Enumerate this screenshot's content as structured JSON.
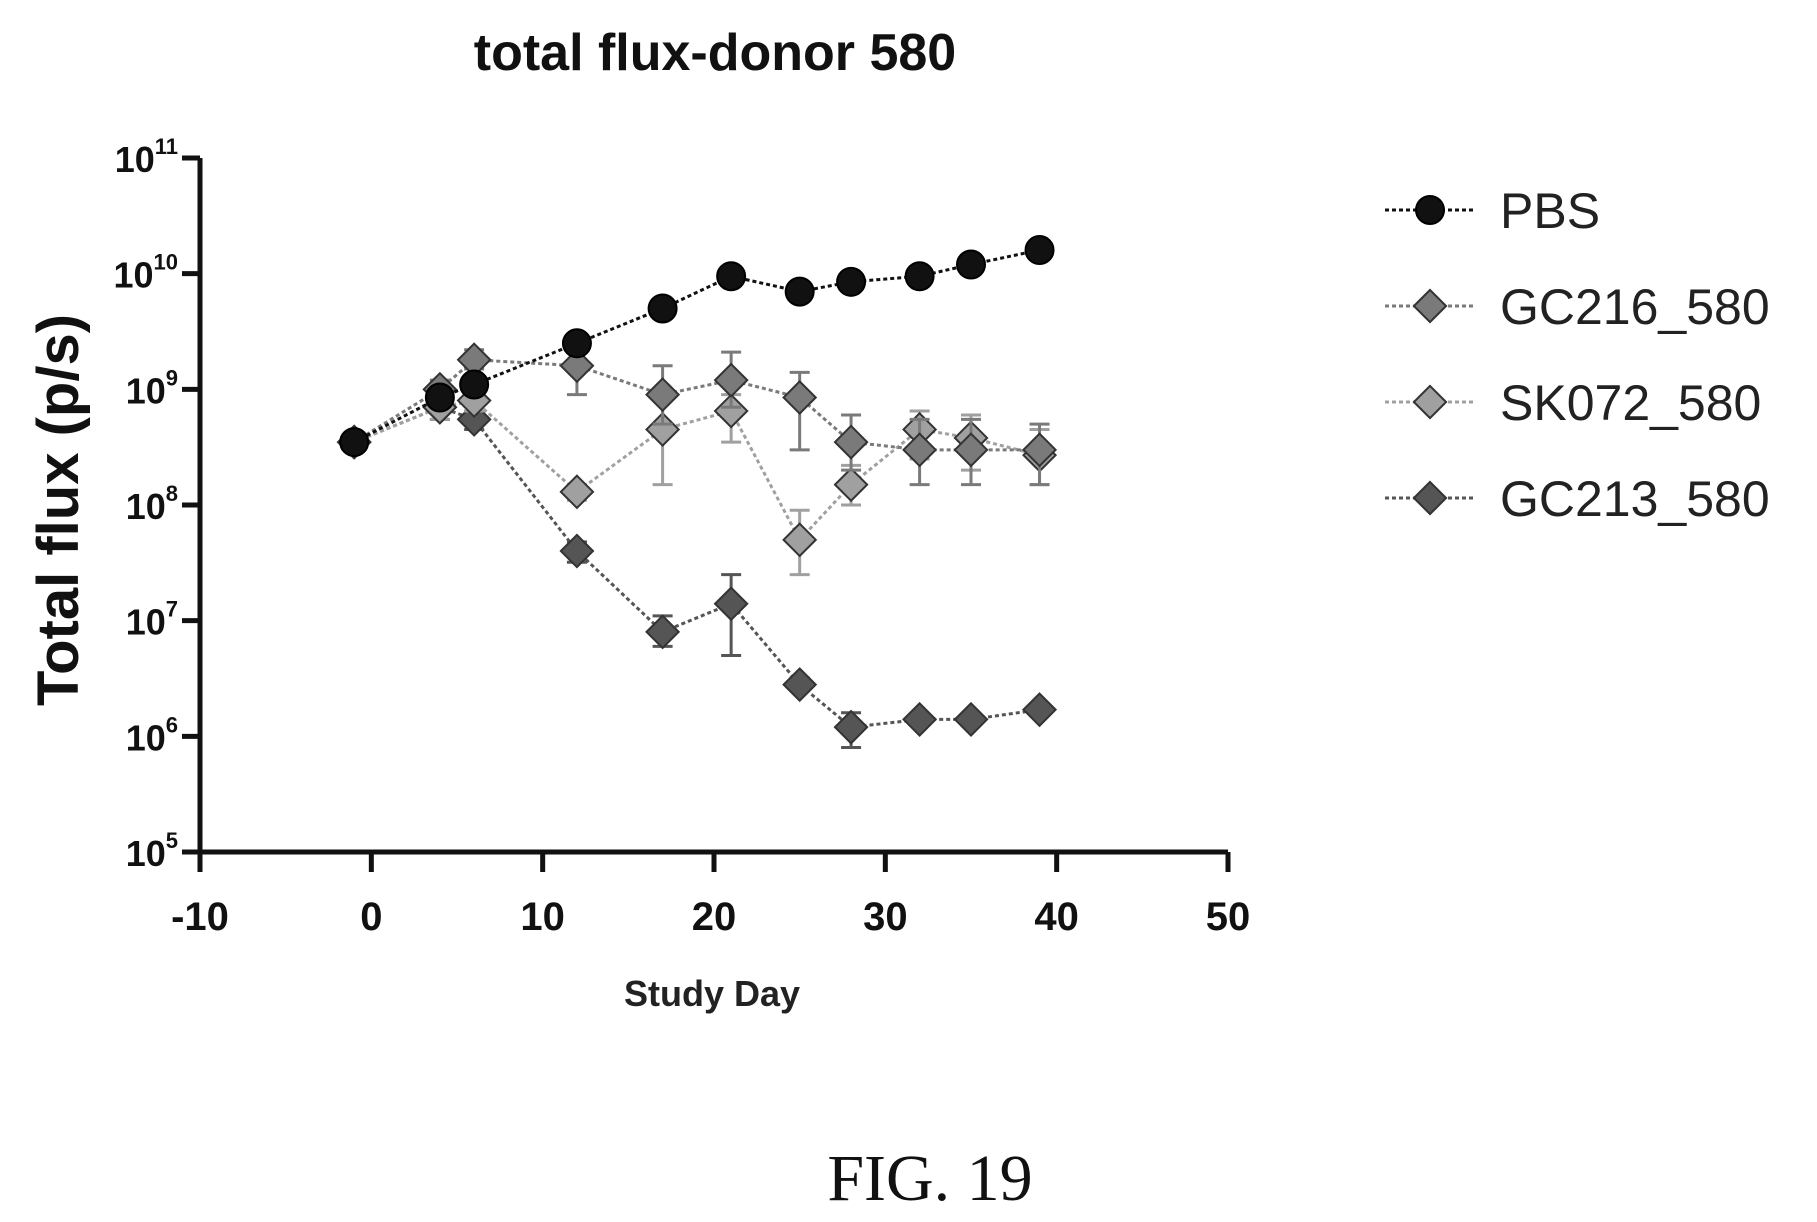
{
  "chart_data": {
    "type": "line",
    "title": "total flux-donor 580",
    "xlabel": "Study Day",
    "ylabel": "Total flux (p/s)",
    "xlim": [
      -10,
      50
    ],
    "xticks": [
      -10,
      0,
      10,
      20,
      30,
      40,
      50
    ],
    "xtick_labels": [
      "-10",
      "0",
      "10",
      "20",
      "30",
      "40",
      "50"
    ],
    "ylim": [
      100000,
      100000000000
    ],
    "yscale": "log",
    "yticks": [
      {
        "value": 100000,
        "base": "10",
        "exp": "5"
      },
      {
        "value": 1000000,
        "base": "10",
        "exp": "6"
      },
      {
        "value": 10000000,
        "base": "10",
        "exp": "7"
      },
      {
        "value": 100000000,
        "base": "10",
        "exp": "8"
      },
      {
        "value": 1000000000,
        "base": "10",
        "exp": "9"
      },
      {
        "value": 10000000000,
        "base": "10",
        "exp": "10"
      },
      {
        "value": 100000000000,
        "base": "10",
        "exp": "11"
      }
    ],
    "grid": false,
    "legend_position": "right",
    "series": [
      {
        "name": "PBS",
        "marker": "circle",
        "color": "#111111",
        "x": [
          -1,
          4,
          6,
          12,
          17,
          21,
          25,
          28,
          32,
          35,
          39
        ],
        "y": [
          350000000,
          850000000,
          1100000000,
          2500000000,
          5000000000,
          9500000000,
          7000000000,
          8500000000,
          9500000000,
          12000000000,
          16000000000
        ],
        "err_low": [],
        "err_high": []
      },
      {
        "name": "GC216_580",
        "marker": "diamond",
        "color": "#7a7a7a",
        "x": [
          -1,
          4,
          6,
          12,
          17,
          21,
          25,
          28,
          32,
          35,
          39
        ],
        "y": [
          350000000,
          1000000000,
          1800000000,
          1600000000,
          900000000,
          1200000000,
          850000000,
          350000000,
          300000000,
          300000000,
          300000000
        ],
        "err_low": [
          320000000,
          800000000,
          1500000000,
          900000000,
          500000000,
          700000000,
          300000000,
          200000000,
          150000000,
          150000000,
          150000000
        ],
        "err_high": [
          380000000,
          1200000000,
          2200000000,
          2300000000,
          1600000000,
          2100000000,
          1400000000,
          600000000,
          550000000,
          550000000,
          500000000
        ]
      },
      {
        "name": "SK072_580",
        "marker": "diamond",
        "color": "#a0a0a0",
        "x": [
          -1,
          4,
          6,
          12,
          17,
          21,
          25,
          28,
          32,
          35,
          39
        ],
        "y": [
          350000000,
          700000000,
          800000000,
          130000000,
          450000000,
          650000000,
          50000000,
          150000000,
          450000000,
          380000000,
          270000000
        ],
        "err_low": [
          320000000,
          550000000,
          650000000,
          110000000,
          150000000,
          350000000,
          25000000,
          100000000,
          250000000,
          200000000,
          150000000
        ],
        "err_high": [
          380000000,
          850000000,
          950000000,
          150000000,
          800000000,
          900000000,
          90000000,
          220000000,
          650000000,
          600000000,
          450000000
        ]
      },
      {
        "name": "GC213_580",
        "marker": "diamond",
        "color": "#555555",
        "x": [
          -1,
          4,
          6,
          12,
          17,
          21,
          25,
          28,
          32,
          35,
          39
        ],
        "y": [
          350000000,
          700000000,
          550000000,
          40000000,
          8000000,
          14000000,
          2800000,
          1200000,
          1400000,
          1400000,
          1700000
        ],
        "err_low": [
          320000000,
          550000000,
          450000000,
          32000000,
          6000000,
          5000000,
          2500000,
          800000,
          1250000,
          1250000,
          1500000
        ],
        "err_high": [
          380000000,
          850000000,
          650000000,
          48000000,
          11000000,
          25000000,
          3200000,
          1600000,
          1550000,
          1550000,
          1900000
        ]
      }
    ]
  },
  "caption": "FIG. 19"
}
